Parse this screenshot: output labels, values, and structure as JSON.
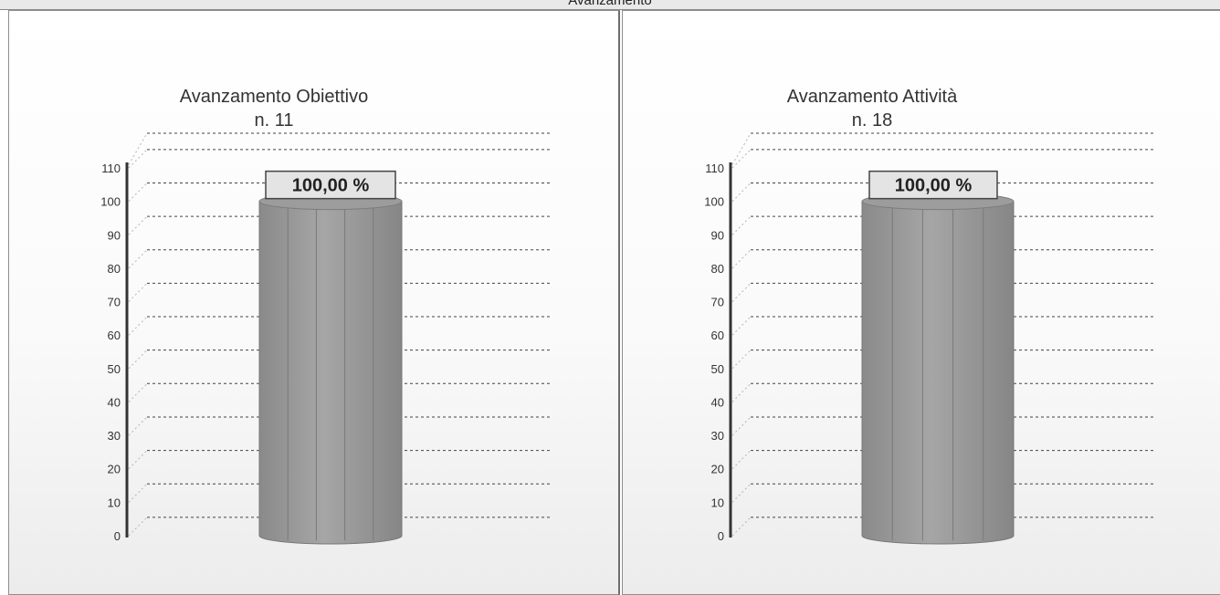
{
  "header": {
    "title": "Avanzamento"
  },
  "chart_data": [
    {
      "type": "bar",
      "title": "Avanzamento Obiettivo",
      "subtitle": "n. 11",
      "categories": [
        ""
      ],
      "values": [
        100
      ],
      "data_labels": [
        "100,00 %"
      ],
      "ylim": [
        0,
        110
      ],
      "yticks": [
        "0",
        "10",
        "20",
        "30",
        "40",
        "50",
        "60",
        "70",
        "80",
        "90",
        "100",
        "110"
      ],
      "grid": true,
      "bar_color": "#8a8a8a"
    },
    {
      "type": "bar",
      "title": "Avanzamento Attività",
      "subtitle": "n. 18",
      "categories": [
        ""
      ],
      "values": [
        100
      ],
      "data_labels": [
        "100,00 %"
      ],
      "ylim": [
        0,
        110
      ],
      "yticks": [
        "0",
        "10",
        "20",
        "30",
        "40",
        "50",
        "60",
        "70",
        "80",
        "90",
        "100",
        "110"
      ],
      "grid": true,
      "bar_color": "#8a8a8a"
    }
  ]
}
